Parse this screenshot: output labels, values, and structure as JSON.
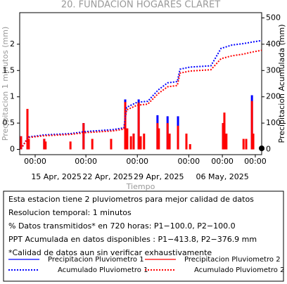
{
  "chart_data": {
    "type": "combo",
    "title": "20. FUNDACION HOGARES CLARET",
    "x_label": "Tiempo",
    "y_label": "Precipitacion 1 minutos (mm)",
    "y2_label": "Precipitacion Acumulada (mm)",
    "xlim": [
      0,
      720
    ],
    "xticks": [
      {
        "value": 46,
        "label": "00:00"
      },
      {
        "value": 197,
        "label": "00:00"
      },
      {
        "value": 350,
        "label": "00:00"
      },
      {
        "value": 503,
        "label": "00:00"
      },
      {
        "value": 603,
        "label": "00:00"
      },
      {
        "value": 701,
        "label": "00:00"
      }
    ],
    "x_date_labels": [
      {
        "value": 109,
        "label": "15 Apr, 2025"
      },
      {
        "value": 262,
        "label": "22 Apr, 2025"
      },
      {
        "value": 414,
        "label": "29 Apr, 2025"
      },
      {
        "value": 603,
        "label": "06 May, 2025"
      }
    ],
    "ylim": [
      -0.1,
      2.6
    ],
    "yticks": [
      0,
      0.5,
      1,
      1.5,
      2
    ],
    "y2lim": [
      -20,
      520
    ],
    "y2ticks": [
      0,
      100,
      200,
      300,
      400,
      500
    ],
    "series": [
      {
        "name": "Precipitacion Pluviometro 1",
        "color": "#0000ff",
        "kind": "bar",
        "x": [
          4,
          23,
          73,
          190,
          314,
          339,
          354,
          410,
          440,
          471,
          605,
          609,
          691
        ],
        "values": [
          0.25,
          0.75,
          0.2,
          0.5,
          0.95,
          0.3,
          0.95,
          0.65,
          0.63,
          0.63,
          0.5,
          0.5,
          1.03
        ]
      },
      {
        "name": "Precipitacion Pluviometro 2",
        "color": "#ff0000",
        "kind": "bar",
        "x": [
          4,
          23,
          27,
          73,
          77,
          151,
          190,
          216,
          272,
          314,
          320,
          331,
          339,
          354,
          360,
          370,
          410,
          414,
          440,
          446,
          471,
          496,
          507,
          605,
          609,
          615,
          666,
          674,
          691,
          695
        ],
        "values": [
          0.25,
          0.77,
          0.2,
          0.2,
          0.15,
          0.15,
          0.5,
          0.2,
          0.2,
          0.9,
          0.4,
          0.25,
          0.3,
          0.9,
          0.25,
          0.3,
          0.5,
          0.4,
          0.5,
          0.3,
          0.45,
          0.3,
          0.1,
          0.5,
          0.7,
          0.3,
          0.2,
          0.2,
          0.92,
          0.3
        ]
      },
      {
        "name": "Acumulado Pluviometro 1",
        "color": "#0000ff",
        "kind": "line",
        "axis": "y2",
        "x": [
          4,
          25,
          73,
          151,
          197,
          276,
          310,
          318,
          349,
          381,
          412,
          440,
          469,
          477,
          507,
          569,
          599,
          632,
          664,
          691,
          720
        ],
        "values": [
          2,
          47,
          55,
          60,
          68,
          75,
          82,
          160,
          179,
          183,
          226,
          253,
          258,
          305,
          313,
          318,
          384,
          397,
          402,
          408,
          414
        ]
      },
      {
        "name": "Acumulado Pluviometro 2",
        "color": "#ff0000",
        "kind": "line",
        "axis": "y2",
        "x": [
          4,
          25,
          73,
          151,
          197,
          276,
          310,
          318,
          349,
          381,
          412,
          440,
          469,
          477,
          507,
          569,
          599,
          632,
          664,
          691,
          720
        ],
        "values": [
          2,
          45,
          52,
          57,
          64,
          70,
          77,
          150,
          168,
          172,
          212,
          238,
          243,
          290,
          298,
          303,
          345,
          356,
          362,
          370,
          377
        ]
      }
    ],
    "info_lines": [
      "Esta estacion tiene 2 pluviometros para mejor calidad de datos",
      "Resolucion temporal: 1 minutos",
      "% Datos transmitidos* en 720 horas: P1−100.0, P2−100.0",
      "PPT Acumulada en datos disponibles : P1−413.8, P2−376.9 mm",
      "*Calidad de datos aun sin verificar exhaustivamente"
    ]
  }
}
